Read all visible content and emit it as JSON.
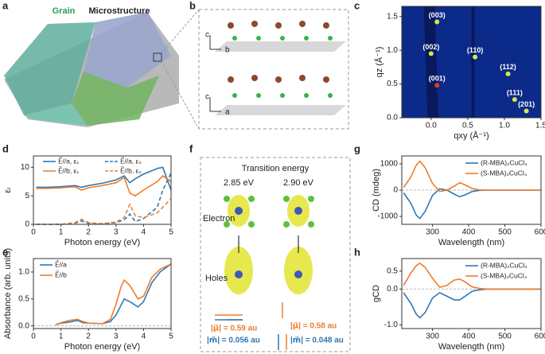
{
  "panel_labels": [
    "a",
    "b",
    "c",
    "d",
    "e",
    "f",
    "g",
    "h"
  ],
  "panel_a": {
    "grain": "Grain",
    "microstructure": "Microstructure"
  },
  "panel_b": {
    "axes": [
      "c",
      "b",
      "c",
      "a"
    ]
  },
  "panel_f": {
    "title": "Transition energy",
    "energies": [
      "2.85 eV",
      "2.90 eV"
    ],
    "electron": "Electron",
    "holes": "Holes",
    "left": {
      "mu": "|μ⃗| = 0.59 au",
      "m": "|m⃗| = 0.056 au"
    },
    "right": {
      "mu": "|μ⃗| = 0.58 au",
      "m": "|m⃗| = 0.048 au"
    }
  },
  "chart_data": [
    {
      "type": "image",
      "xlabel": "qxy (Å⁻¹)",
      "ylabel": "qz (Å⁻¹)",
      "xlim": [
        -0.4,
        1.5
      ],
      "ylim": [
        0,
        1.65
      ],
      "xticks": [
        {
          "value": 0,
          "label": "0.0"
        },
        0.5,
        {
          "value": 1,
          "label": "1.0"
        },
        1.5
      ],
      "yticks": [
        {
          "value": 0,
          "label": "0.0"
        },
        0.5,
        {
          "value": 1,
          "label": "1.0"
        },
        1.5
      ],
      "peaks": [
        {
          "label": "(003)",
          "x": 0.08,
          "y": 1.42
        },
        {
          "label": "(002)",
          "x": 0.0,
          "y": 0.95
        },
        {
          "label": "(110)",
          "x": 0.6,
          "y": 0.9
        },
        {
          "label": "(001)",
          "x": 0.08,
          "y": 0.48
        },
        {
          "label": "(112)",
          "x": 1.05,
          "y": 0.65
        },
        {
          "label": "(111)",
          "x": 1.14,
          "y": 0.27
        },
        {
          "label": "(201)",
          "x": 1.3,
          "y": 0.1
        }
      ]
    },
    {
      "type": "line",
      "xlabel": "Photon energy (eV)",
      "ylabel": "εᵣ",
      "xlim": [
        0,
        5
      ],
      "ylim": [
        0,
        12
      ],
      "xticks": [
        0,
        1,
        2,
        3,
        4,
        5
      ],
      "yticks": [
        0,
        5,
        10
      ],
      "legend": "upper center",
      "x": [
        0.1,
        0.5,
        1,
        1.5,
        1.75,
        2,
        2.5,
        3,
        3.3,
        3.5,
        3.7,
        4,
        4.5,
        4.7,
        5
      ],
      "series": [
        {
          "name": "E⃗//a, ε₁",
          "color": "#2f78b5",
          "dash": false,
          "values": [
            6.5,
            6.5,
            6.6,
            6.8,
            6.5,
            6.8,
            7.2,
            7.8,
            8.5,
            7.3,
            8.0,
            8.8,
            9.8,
            10.0,
            6.0
          ]
        },
        {
          "name": "E⃗//b, ε₁",
          "color": "#ef7d2d",
          "dash": false,
          "values": [
            6.3,
            6.3,
            6.4,
            6.6,
            6.0,
            6.4,
            6.8,
            7.3,
            8.2,
            5.5,
            5.0,
            6.0,
            7.5,
            8.5,
            7.5
          ]
        },
        {
          "name": "E⃗//a, ε₂",
          "color": "#2f78b5",
          "dash": true,
          "values": [
            0,
            0,
            0,
            0.2,
            0.6,
            0.2,
            0.1,
            0.3,
            0.8,
            1.8,
            0.5,
            1.0,
            3.0,
            6.0,
            9.0
          ]
        },
        {
          "name": "E⃗//b, ε₂",
          "color": "#ef7d2d",
          "dash": true,
          "values": [
            0,
            0,
            0,
            0.3,
            0.9,
            0.3,
            0.1,
            0.4,
            1.2,
            3.5,
            1.5,
            1.2,
            2.0,
            3.0,
            4.5
          ]
        }
      ]
    },
    {
      "type": "line",
      "xlabel": "Photon energy (eV)",
      "ylabel": "Absorbance (arb. units)",
      "xlim": [
        0,
        5
      ],
      "ylim": [
        -0.05,
        1.25
      ],
      "xticks": [
        0,
        1,
        2,
        3,
        4,
        5
      ],
      "yticks": [
        {
          "value": 0,
          "label": "0.0"
        },
        0.5,
        {
          "value": 1,
          "label": "1.0"
        }
      ],
      "legend": "upper left",
      "x": [
        0.8,
        1,
        1.3,
        1.6,
        1.8,
        2,
        2.5,
        2.8,
        3,
        3.2,
        3.3,
        3.5,
        3.8,
        4,
        4.3,
        4.6,
        5
      ],
      "series": [
        {
          "name": "E⃗//a",
          "color": "#2f78b5",
          "dash": false,
          "values": [
            0.02,
            0.05,
            0.07,
            0.1,
            0.06,
            0.05,
            0.04,
            0.08,
            0.2,
            0.4,
            0.5,
            0.45,
            0.35,
            0.45,
            0.8,
            1.0,
            1.15
          ]
        },
        {
          "name": "E⃗//b",
          "color": "#ef7d2d",
          "dash": false,
          "values": [
            0.02,
            0.06,
            0.1,
            0.12,
            0.08,
            0.05,
            0.04,
            0.12,
            0.4,
            0.75,
            0.85,
            0.75,
            0.5,
            0.55,
            0.9,
            1.05,
            1.15
          ]
        }
      ]
    },
    {
      "type": "line",
      "xlabel": "Wavelength (nm)",
      "ylabel": "CD (mdeg)",
      "xlim": [
        215,
        600
      ],
      "ylim": [
        -1300,
        1300
      ],
      "xticks": [
        300,
        400,
        500,
        600
      ],
      "yticks": [
        -1000,
        0,
        1000
      ],
      "legend": "upper right",
      "x": [
        220,
        240,
        255,
        265,
        280,
        300,
        320,
        340,
        360,
        375,
        390,
        410,
        430,
        450,
        500,
        600
      ],
      "series": [
        {
          "name": "(R-MBA)₂CuCl₄",
          "color": "#2f78b5",
          "dash": false,
          "values": [
            -100,
            -500,
            -950,
            -1080,
            -800,
            -200,
            50,
            0,
            -150,
            -250,
            -180,
            -50,
            -10,
            0,
            0,
            0
          ]
        },
        {
          "name": "(S-MBA)₂CuCl₄",
          "color": "#ef7d2d",
          "dash": false,
          "values": [
            100,
            500,
            950,
            1100,
            850,
            250,
            -50,
            0,
            150,
            280,
            200,
            60,
            10,
            0,
            0,
            0
          ]
        }
      ]
    },
    {
      "type": "line",
      "xlabel": "Wavelength (nm)",
      "ylabel": "gCD",
      "xlim": [
        215,
        600
      ],
      "ylim": [
        -1.1,
        0.85
      ],
      "xticks": [
        300,
        400,
        500,
        600
      ],
      "yticks": [
        {
          "value": -1,
          "label": "-1.0"
        },
        {
          "value": 0,
          "label": "0.0"
        },
        0.5
      ],
      "legend": "upper right",
      "x": [
        220,
        240,
        255,
        265,
        280,
        300,
        320,
        340,
        360,
        375,
        390,
        410,
        430,
        450,
        500,
        600
      ],
      "series": [
        {
          "name": "(R-MBA)₂CuCl₄",
          "color": "#2f78b5",
          "dash": false,
          "values": [
            -0.1,
            -0.4,
            -0.7,
            -0.8,
            -0.65,
            -0.25,
            -0.1,
            -0.2,
            -0.3,
            -0.3,
            -0.2,
            -0.06,
            -0.02,
            0,
            0,
            0
          ]
        },
        {
          "name": "(S-MBA)₂CuCl₄",
          "color": "#ef7d2d",
          "dash": false,
          "values": [
            0.1,
            0.45,
            0.65,
            0.72,
            0.6,
            0.3,
            0.05,
            0.1,
            0.25,
            0.28,
            0.2,
            0.06,
            0.02,
            0,
            0,
            0
          ]
        }
      ]
    }
  ]
}
